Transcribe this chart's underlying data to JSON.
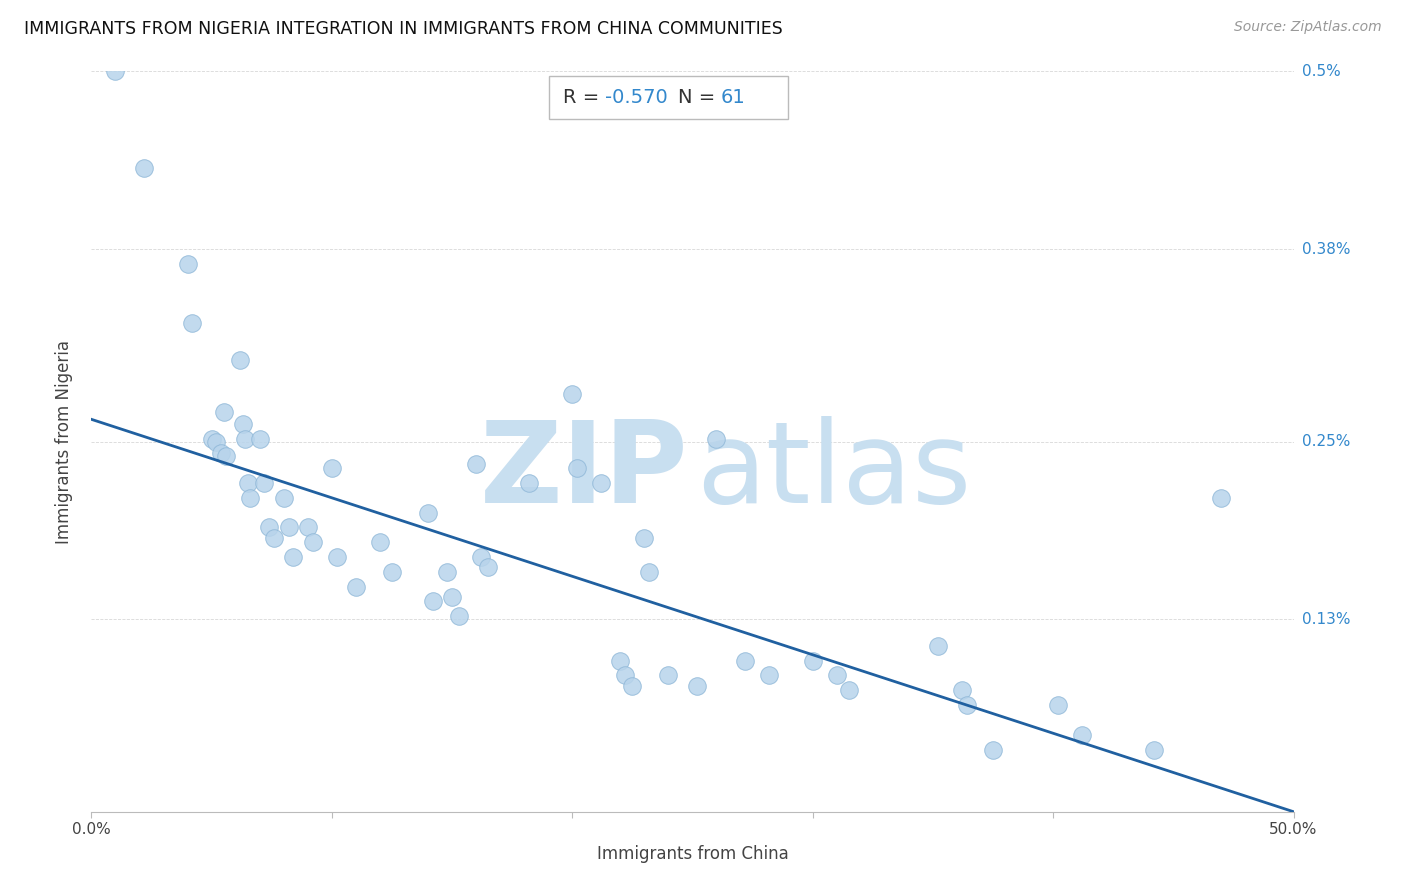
{
  "title": "IMMIGRANTS FROM NIGERIA INTEGRATION IN IMMIGRANTS FROM CHINA COMMUNITIES",
  "source": "Source: ZipAtlas.com",
  "xlabel": "Immigrants from China",
  "ylabel": "Immigrants from Nigeria",
  "R": -0.57,
  "N": 61,
  "xlim": [
    0.0,
    0.5
  ],
  "ylim": [
    0.0,
    0.5
  ],
  "ytick_positions": [
    0.0,
    0.13,
    0.25,
    0.38,
    0.5
  ],
  "ytick_labels": [
    "",
    "0.13%",
    "0.25%",
    "0.38%",
    "0.5%"
  ],
  "xtick_positions": [
    0.0,
    0.1,
    0.2,
    0.3,
    0.4,
    0.5
  ],
  "xtick_labels": [
    "0.0%",
    "",
    "",
    "",
    "",
    "50.0%"
  ],
  "scatter_x": [
    0.01,
    0.022,
    0.04,
    0.042,
    0.055,
    0.05,
    0.052,
    0.054,
    0.056,
    0.062,
    0.063,
    0.064,
    0.065,
    0.066,
    0.07,
    0.072,
    0.074,
    0.076,
    0.08,
    0.082,
    0.084,
    0.09,
    0.092,
    0.1,
    0.102,
    0.11,
    0.12,
    0.125,
    0.14,
    0.142,
    0.148,
    0.15,
    0.153,
    0.16,
    0.162,
    0.165,
    0.182,
    0.2,
    0.202,
    0.212,
    0.22,
    0.222,
    0.225,
    0.23,
    0.232,
    0.24,
    0.252,
    0.26,
    0.272,
    0.282,
    0.3,
    0.31,
    0.315,
    0.352,
    0.362,
    0.364,
    0.375,
    0.402,
    0.412,
    0.442,
    0.47
  ],
  "scatter_y": [
    0.5,
    0.435,
    0.37,
    0.33,
    0.27,
    0.252,
    0.25,
    0.242,
    0.24,
    0.305,
    0.262,
    0.252,
    0.222,
    0.212,
    0.252,
    0.222,
    0.192,
    0.185,
    0.212,
    0.192,
    0.172,
    0.192,
    0.182,
    0.232,
    0.172,
    0.152,
    0.182,
    0.162,
    0.202,
    0.142,
    0.162,
    0.145,
    0.132,
    0.235,
    0.172,
    0.165,
    0.222,
    0.282,
    0.232,
    0.222,
    0.102,
    0.092,
    0.085,
    0.185,
    0.162,
    0.092,
    0.085,
    0.252,
    0.102,
    0.092,
    0.102,
    0.092,
    0.082,
    0.112,
    0.082,
    0.072,
    0.042,
    0.072,
    0.052,
    0.042,
    0.212
  ],
  "dot_color": "#b8d4eb",
  "dot_edge_color": "#90b8d8",
  "line_color": "#2060a0",
  "regression_x0": 0.0,
  "regression_y0": 0.265,
  "regression_x1": 0.5,
  "regression_y1": 0.0,
  "watermark_zip_color": "#c8dff0",
  "watermark_atlas_color": "#c8dff0",
  "grid_color": "#d8d8d8",
  "title_fontsize": 12.5,
  "source_fontsize": 10,
  "axis_label_fontsize": 12,
  "tick_label_fontsize": 11,
  "annotation_fontsize": 14,
  "dot_size": 160
}
